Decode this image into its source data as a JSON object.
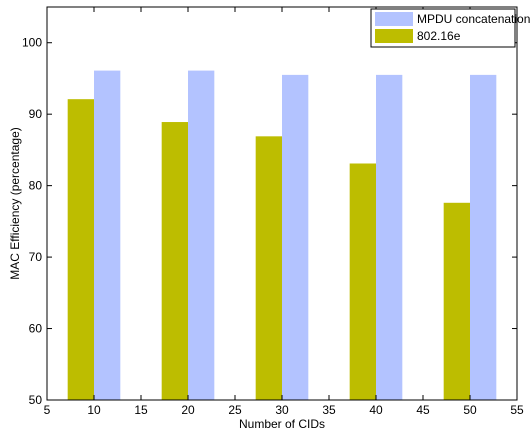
{
  "chart_data": {
    "type": "bar",
    "title": "",
    "xlabel": "Number of CIDs",
    "ylabel": "MAC Efficiency (percentage)",
    "xlim": [
      5,
      55
    ],
    "ylim": [
      50,
      105
    ],
    "xticks": [
      5,
      10,
      15,
      20,
      25,
      30,
      35,
      40,
      45,
      50,
      55
    ],
    "yticks": [
      50,
      60,
      70,
      80,
      90,
      100
    ],
    "categories": [
      10,
      20,
      30,
      40,
      50
    ],
    "series": [
      {
        "name": "802.16e",
        "color": "#bdbd00",
        "values": [
          92.1,
          88.9,
          86.9,
          83.1,
          77.6
        ]
      },
      {
        "name": "MPDU concatenation",
        "color": "#b3c3ff",
        "values": [
          96.1,
          96.1,
          95.5,
          95.5,
          95.5
        ]
      }
    ],
    "legend_order": [
      "MPDU concatenation",
      "802.16e"
    ],
    "legend_position": "top-right",
    "grid": false
  }
}
